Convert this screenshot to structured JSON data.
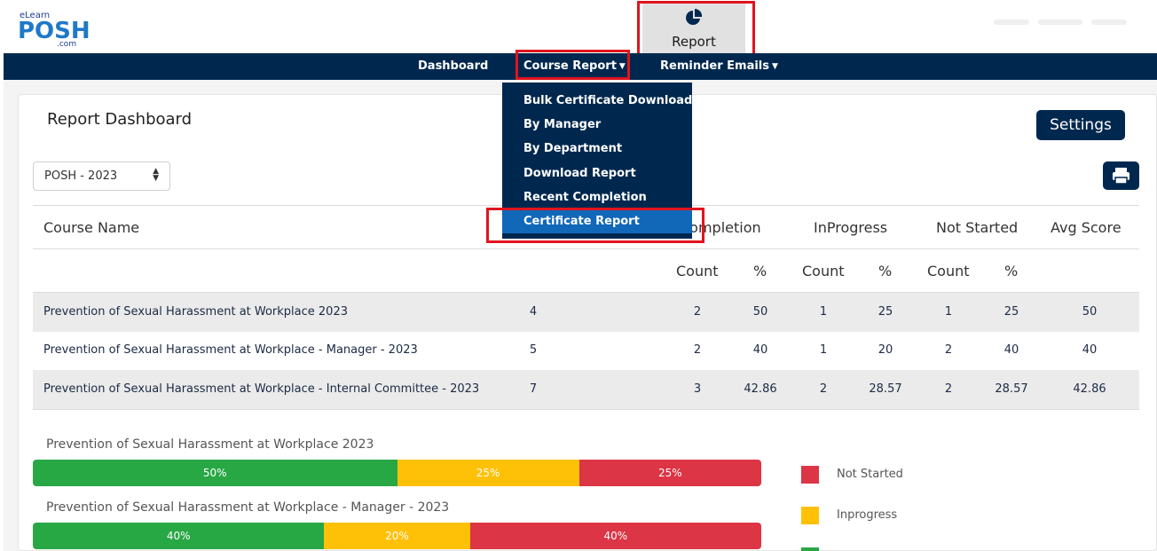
{
  "header": {
    "logo_top": "eLearn",
    "logo_main": "POSH",
    "logo_bottom": ".com",
    "report_tab_label": "Report"
  },
  "nav": {
    "dashboard": "Dashboard",
    "course_report": "Course Report",
    "reminder_emails": "Reminder Emails"
  },
  "dropdown": {
    "items": [
      "Bulk Certificate Download",
      "By Manager",
      "By Department",
      "Download Report",
      "Recent Completion",
      "Certificate Report"
    ],
    "active_index": 5
  },
  "page": {
    "title": "Report Dashboard",
    "settings_label": "Settings",
    "year_select": "POSH - 2023"
  },
  "table": {
    "headers": {
      "course_name": "Course Name",
      "completion": "Completion",
      "inprogress": "InProgress",
      "not_started": "Not Started",
      "avg_score": "Avg Score"
    },
    "subheaders": {
      "count1": "Count",
      "pct1": "%",
      "count2": "Count",
      "pct2": "%",
      "count3": "Count",
      "pct3": "%"
    },
    "rows": [
      {
        "name": "Prevention of Sexual Harassment at Workplace 2023",
        "enrolled": "4",
        "c_count": "2",
        "c_pct": "50",
        "i_count": "1",
        "i_pct": "25",
        "n_count": "1",
        "n_pct": "25",
        "avg": "50"
      },
      {
        "name": "Prevention of Sexual Harassment at Workplace - Manager - 2023",
        "enrolled": "5",
        "c_count": "2",
        "c_pct": "40",
        "i_count": "1",
        "i_pct": "20",
        "n_count": "2",
        "n_pct": "40",
        "avg": "40"
      },
      {
        "name": "Prevention of Sexual Harassment at Workplace - Internal Committee - 2023",
        "enrolled": "7",
        "c_count": "3",
        "c_pct": "42.86",
        "i_count": "2",
        "i_pct": "28.57",
        "n_count": "2",
        "n_pct": "28.57",
        "avg": "42.86"
      }
    ]
  },
  "bars": [
    {
      "title": "Prevention of Sexual Harassment at Workplace 2023",
      "segments": [
        {
          "label": "50%",
          "value": 50,
          "color": "#28a745"
        },
        {
          "label": "25%",
          "value": 25,
          "color": "#ffc107"
        },
        {
          "label": "25%",
          "value": 25,
          "color": "#dc3545"
        }
      ]
    },
    {
      "title": "Prevention of Sexual Harassment at Workplace - Manager - 2023",
      "segments": [
        {
          "label": "40%",
          "value": 40,
          "color": "#28a745"
        },
        {
          "label": "20%",
          "value": 20,
          "color": "#ffc107"
        },
        {
          "label": "40%",
          "value": 40,
          "color": "#dc3545"
        }
      ]
    }
  ],
  "legend": [
    {
      "label": "Not Started",
      "color": "#dc3545"
    },
    {
      "label": "Inprogress",
      "color": "#ffc107"
    },
    {
      "label": "",
      "color": "#28a745"
    }
  ],
  "colors": {
    "navy": "#00284f",
    "active": "#1167b8",
    "highlight": "#e0141e"
  }
}
